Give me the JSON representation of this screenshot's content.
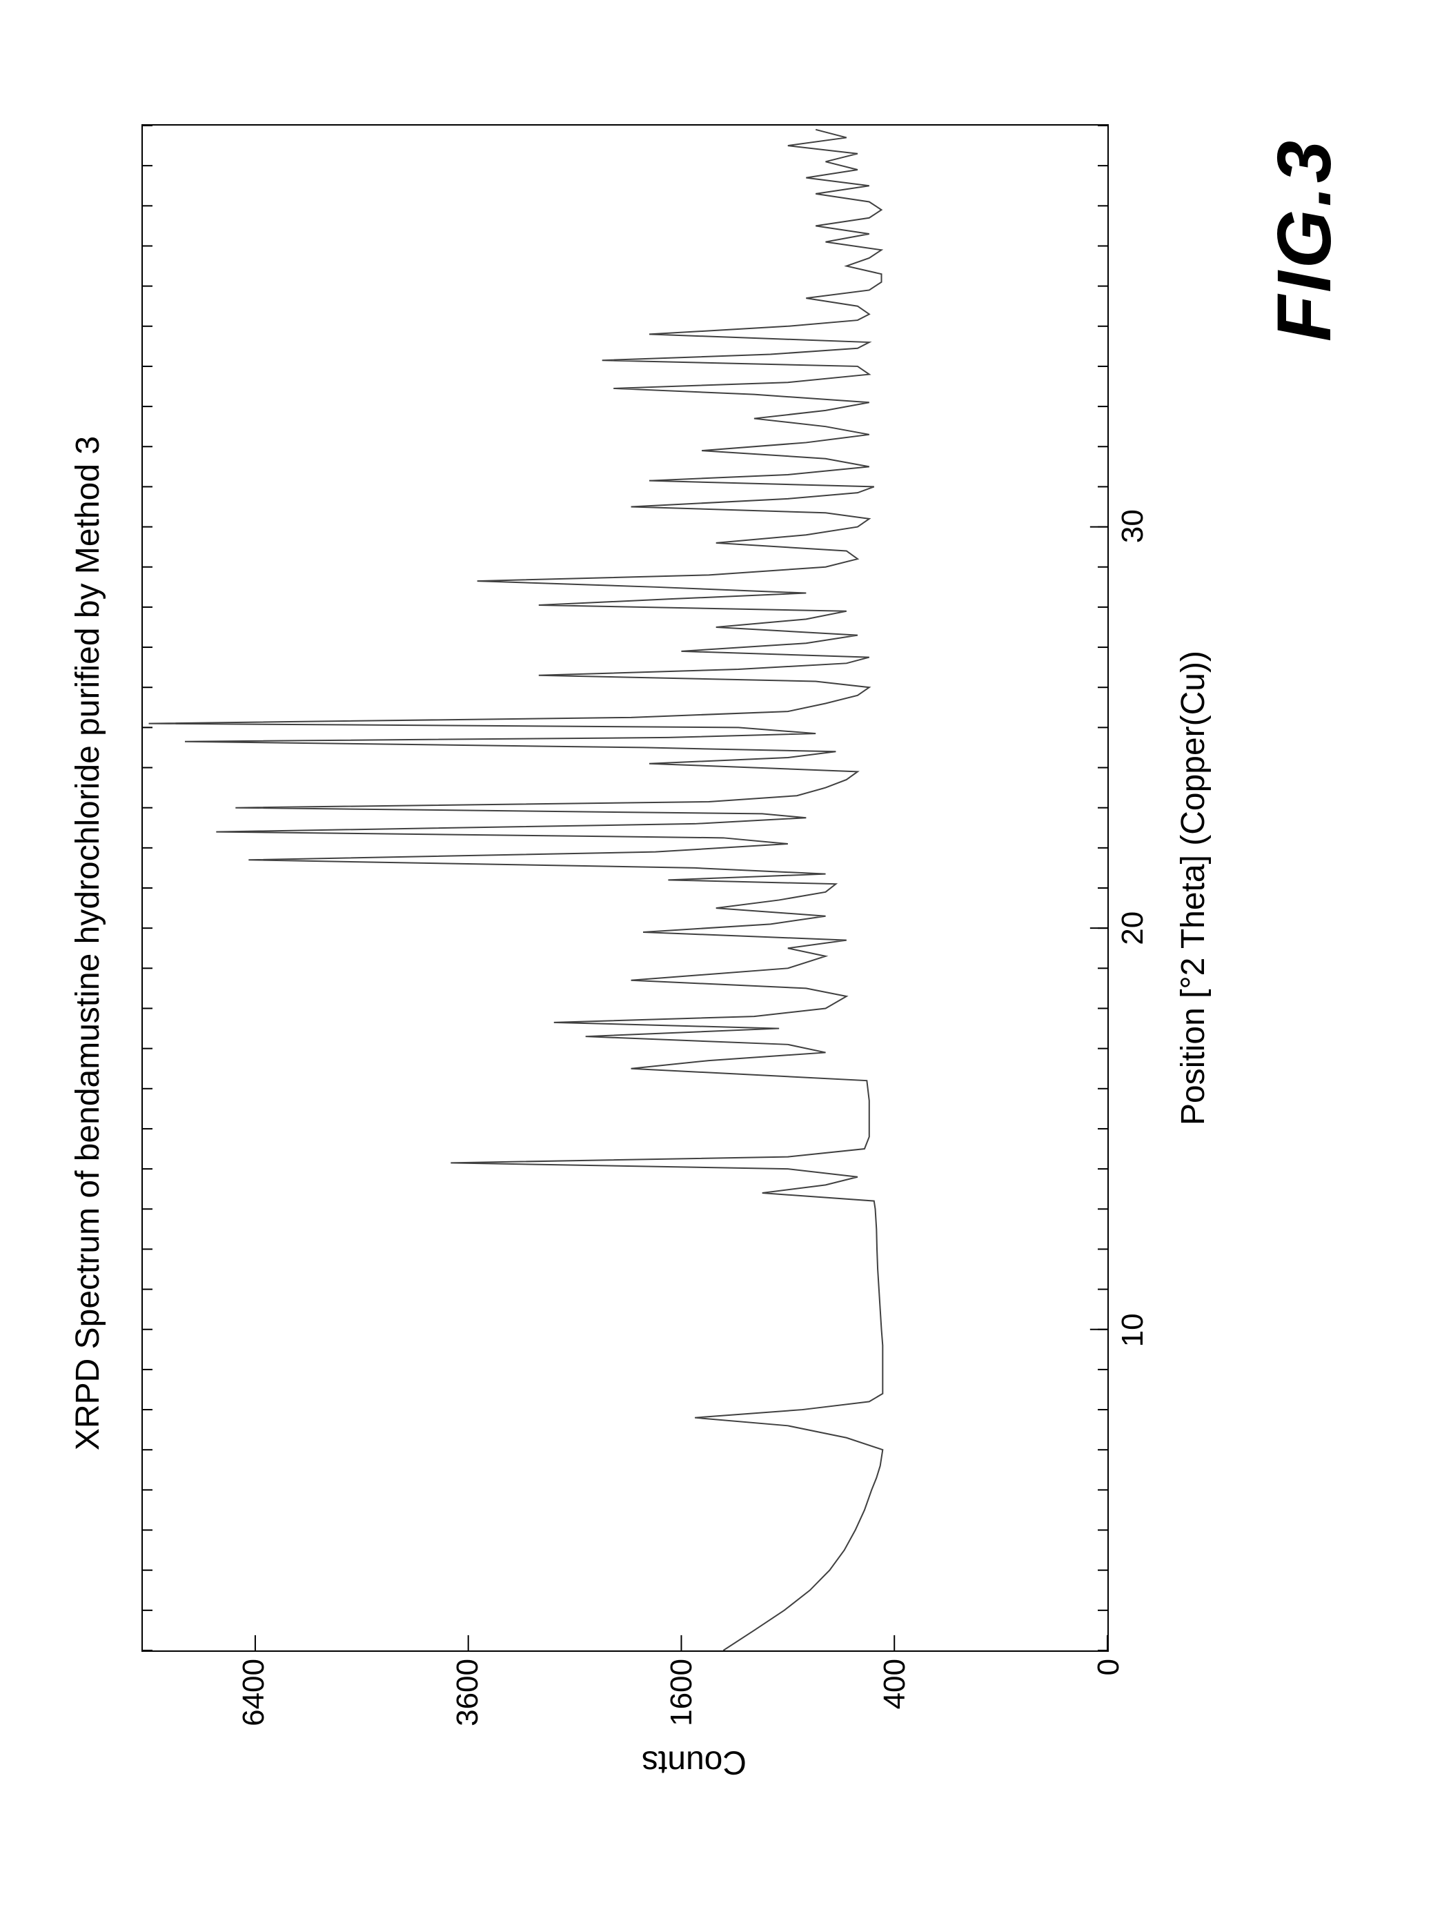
{
  "figure": {
    "caption": "FIG.3",
    "title": "XRPD Spectrum of bendamustine hydrochloride purified by Method 3",
    "x_axis_label": "Position [°2 Theta] (Copper(Cu))",
    "y_axis_label": "Counts",
    "type": "line",
    "line_color": "#404040",
    "line_width": 2,
    "background_color": "#ffffff",
    "frame_color": "#000000",
    "title_fontsize": 48,
    "label_fontsize": 48,
    "tick_fontsize": 44,
    "caption_fontsize": 110,
    "xlim": [
      2,
      40
    ],
    "ylim": [
      0,
      8200
    ],
    "y_scale": "sqrt",
    "x_ticks_major": [
      10,
      20,
      30
    ],
    "x_minor_step": 1,
    "y_ticks": [
      0,
      400,
      1600,
      3600,
      6400
    ],
    "series": {
      "x": [
        2,
        2.5,
        3,
        3.5,
        4,
        4.5,
        5,
        5.5,
        6,
        6.3,
        6.6,
        7,
        7.3,
        7.6,
        7.8,
        8,
        8.2,
        8.4,
        8.7,
        9,
        9.3,
        9.6,
        10,
        10.5,
        11,
        11.5,
        12,
        12.5,
        13,
        13.2,
        13.4,
        13.6,
        13.8,
        14,
        14.15,
        14.3,
        14.5,
        14.8,
        15.2,
        15.7,
        16.2,
        16.5,
        16.7,
        16.9,
        17.1,
        17.3,
        17.5,
        17.65,
        17.8,
        18,
        18.3,
        18.5,
        18.7,
        19,
        19.3,
        19.5,
        19.7,
        19.9,
        20.1,
        20.3,
        20.5,
        20.7,
        20.9,
        21.1,
        21.2,
        21.35,
        21.5,
        21.7,
        21.9,
        22.1,
        22.25,
        22.4,
        22.6,
        22.75,
        22.85,
        23,
        23.15,
        23.3,
        23.5,
        23.7,
        23.9,
        24.1,
        24.25,
        24.4,
        24.5,
        24.65,
        24.75,
        24.85,
        25,
        25.1,
        25.25,
        25.4,
        25.6,
        25.8,
        26,
        26.15,
        26.3,
        26.45,
        26.6,
        26.75,
        26.9,
        27.1,
        27.3,
        27.5,
        27.7,
        27.9,
        28.05,
        28.2,
        28.35,
        28.5,
        28.65,
        28.8,
        29,
        29.2,
        29.4,
        29.6,
        29.8,
        30,
        30.2,
        30.35,
        30.5,
        30.7,
        30.85,
        31,
        31.15,
        31.3,
        31.5,
        31.7,
        31.9,
        32.1,
        32.3,
        32.5,
        32.7,
        32.9,
        33.1,
        33.3,
        33.45,
        33.6,
        33.8,
        34,
        34.15,
        34.3,
        34.45,
        34.6,
        34.8,
        35,
        35.15,
        35.3,
        35.5,
        35.7,
        35.9,
        36.1,
        36.3,
        36.5,
        36.7,
        36.9,
        37.1,
        37.3,
        37.5,
        37.7,
        37.9,
        38.1,
        38.3,
        38.5,
        38.7,
        38.9,
        39.1,
        39.3,
        39.5,
        39.7,
        39.9
      ],
      "y": [
        1300,
        1100,
        920,
        780,
        680,
        610,
        560,
        520,
        490,
        470,
        455,
        445,
        600,
        900,
        1500,
        820,
        500,
        445,
        445,
        445,
        445,
        445,
        450,
        455,
        460,
        465,
        468,
        470,
        475,
        480,
        1050,
        700,
        550,
        900,
        3800,
        900,
        520,
        500,
        500,
        500,
        510,
        2000,
        1400,
        700,
        900,
        2400,
        950,
        2700,
        1100,
        700,
        600,
        800,
        2000,
        900,
        700,
        900,
        600,
        1900,
        1000,
        700,
        1350,
        950,
        700,
        650,
        1700,
        700,
        1500,
        6500,
        1800,
        900,
        1300,
        7000,
        1500,
        800,
        1050,
        6700,
        1400,
        850,
        700,
        600,
        550,
        1850,
        900,
        650,
        1900,
        7500,
        1700,
        750,
        1200,
        8100,
        2000,
        900,
        700,
        550,
        500,
        750,
        2850,
        1200,
        600,
        500,
        1600,
        800,
        550,
        1350,
        800,
        600,
        2850,
        1700,
        800,
        1800,
        3500,
        1400,
        700,
        550,
        600,
        1350,
        800,
        550,
        500,
        700,
        2000,
        900,
        550,
        480,
        1850,
        900,
        500,
        700,
        1450,
        800,
        500,
        700,
        1100,
        700,
        500,
        1100,
        2150,
        900,
        500,
        550,
        2250,
        1000,
        550,
        500,
        1850,
        900,
        550,
        500,
        550,
        800,
        500,
        450,
        450,
        600,
        500,
        450,
        700,
        500,
        750,
        500,
        450,
        500,
        750,
        500,
        800,
        550,
        700,
        550,
        900,
        600,
        750
      ]
    }
  }
}
